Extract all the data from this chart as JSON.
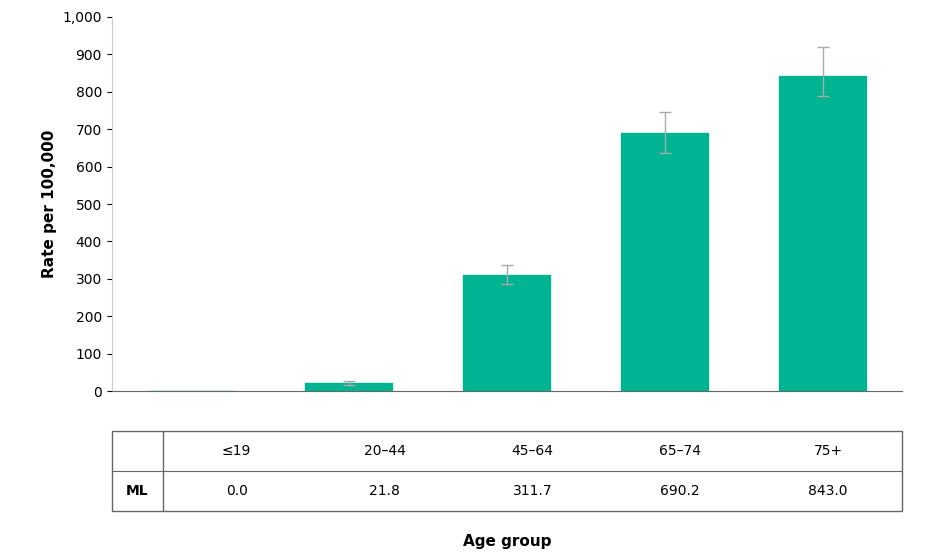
{
  "categories": [
    "≤19",
    "20–44",
    "45–64",
    "65–74",
    "75+"
  ],
  "values": [
    0.0,
    21.8,
    311.7,
    690.2,
    843.0
  ],
  "errors_upper": [
    0.0,
    5.0,
    25.0,
    55.0,
    75.0
  ],
  "errors_lower": [
    0.0,
    5.0,
    25.0,
    55.0,
    55.0
  ],
  "bar_color": "#00b391",
  "error_color": "#aaaaaa",
  "ylabel": "Rate per 100,000",
  "xlabel": "Age group",
  "ylim": [
    0,
    1000
  ],
  "yticks": [
    0,
    100,
    200,
    300,
    400,
    500,
    600,
    700,
    800,
    900,
    1000
  ],
  "ml_label": "ML",
  "ml_values": [
    "0.0",
    "21.8",
    "311.7",
    "690.2",
    "843.0"
  ],
  "background_color": "#ffffff",
  "table_border_color": "#666666",
  "bar_width": 0.55,
  "axis_fontsize": 11,
  "tick_fontsize": 10,
  "table_fontsize": 10,
  "xlabel_fontsize": 11
}
